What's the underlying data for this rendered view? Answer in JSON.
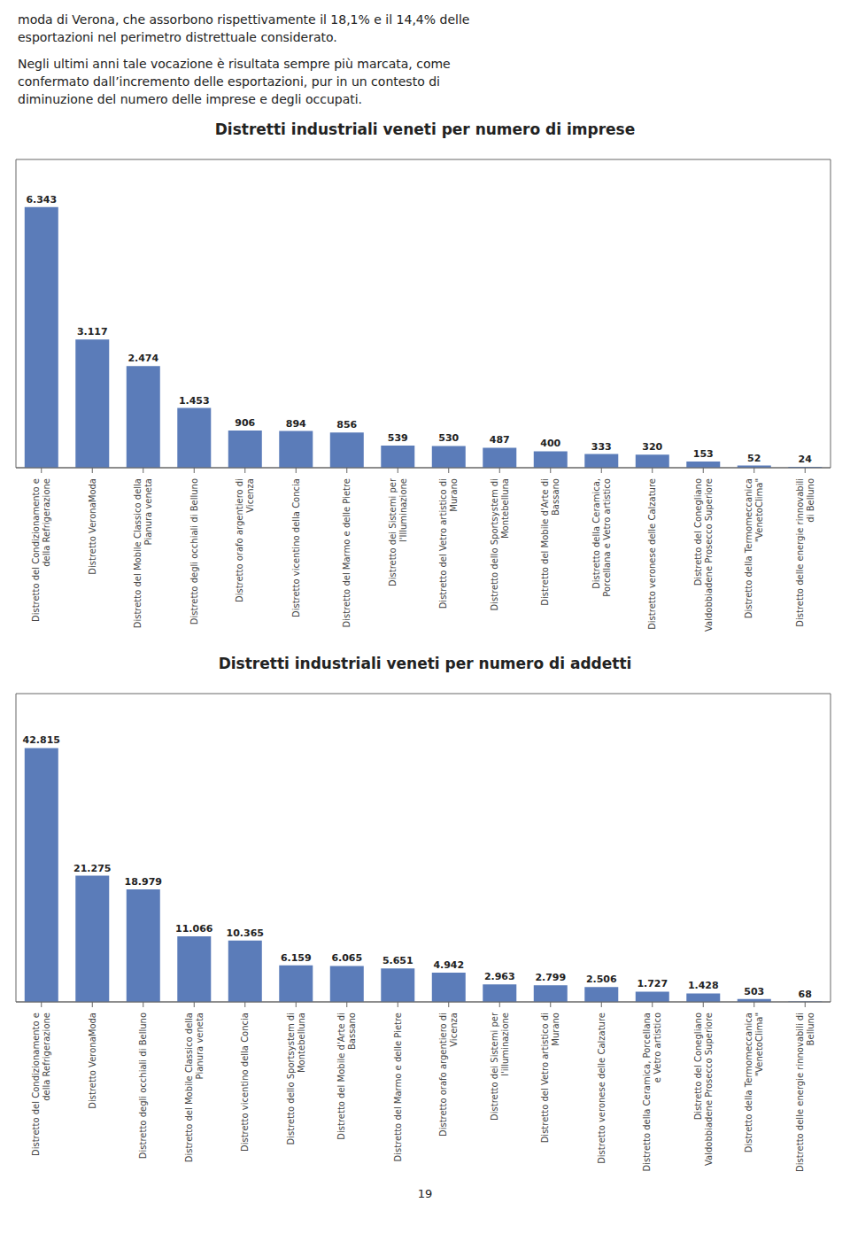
{
  "chart_data": [
    {
      "type": "bar",
      "title": "Distretti industriali veneti per numero di imprese",
      "annotations": [
        "moda di Verona, che assorbono rispettivamente il 18,1% e il 14,4% delle",
        "esportazioni nel perimetro distrettuale considerato.",
        "Negli ultimi anni tale vocazione è risultata sempre più marcata, come",
        "confermato dall’incremento delle esportazioni, pur in un contesto di",
        "diminuzione del numero delle imprese e degli occupati."
      ],
      "categories": [
        "Distretto del Condizionamento e\ndella Refrigerazione",
        "Distretto VeronaModa",
        "Distretto del Mobile Classico della\nPianura veneta",
        "Distretto degli occhiali di Belluno",
        "Distretto orafo argentiero di\nVicenza",
        "Distretto vicentino della Concia",
        "Distretto del Marmo e delle Pietre",
        "Distretto dei Sistemi per\nl'Illuminazione",
        "Distretto del Vetro artistico di\nMurano",
        "Distretto dello Sportsystem di\nMontebelluna",
        "Distretto del Mobile d'Arte di\nBassano",
        "Distretto della Ceramica,\nPorcellana e Vetro artistico",
        "Distretto veronese delle Calzature",
        "Distretto del Conegliano\nValdobbiadene Prosecco Superiore",
        "Distretto della Termomeccanica\n\"VenetoClima\"",
        "Distretto delle energie rinnovabili\ndi Belluno"
      ],
      "values": [
        6343,
        3117,
        2474,
        1453,
        906,
        894,
        856,
        539,
        530,
        487,
        400,
        333,
        320,
        153,
        52,
        24
      ],
      "value_labels": [
        "6.343",
        "3.117",
        "2.474",
        "1.453",
        "906",
        "894",
        "856",
        "539",
        "530",
        "487",
        "400",
        "333",
        "320",
        "153",
        "52",
        "24"
      ],
      "color": "#5B7CB9",
      "ylim": [
        0,
        7500
      ],
      "grid": false,
      "data_labels": true,
      "tick_labels": "x"
    },
    {
      "type": "bar",
      "title": "Distretti industriali veneti per numero di addetti",
      "annotations": [
        "19"
      ],
      "categories": [
        "Distretto del Condizionamento e\ndella Refrigerazione",
        "Distretto VeronaModa",
        "Distretto degli occhiali di Belluno",
        "Distretto del Mobile Classico della\nPianura veneta",
        "Distretto vicentino della Concia",
        "Distretto dello Sportsystem di\nMontebelluna",
        "Distretto del Mobile d'Arte di\nBassano",
        "Distretto del Marmo e delle Pietre",
        "Distretto orafo argentiero di\nVicenza",
        "Distretto dei Sistemi per\nl'illuminazione",
        "Distretto del Vetro artistico di\nMurano",
        "Distretto veronese delle Calzature",
        "Distretto della Ceramica, Porcellana\ne Vetro artistico",
        "Distretto del Conegliano\nValdobbiadene Prosecco Superiore",
        "Distretto della Termomeccanica\n\"VenetoClima\"",
        "Distretto delle energie rinnovabili di\nBelluno"
      ],
      "values": [
        42815,
        21275,
        18979,
        11066,
        10365,
        6159,
        6065,
        5651,
        4942,
        2963,
        2799,
        2506,
        1727,
        1428,
        503,
        68
      ],
      "value_labels": [
        "42.815",
        "21.275",
        "18.979",
        "11.066",
        "10.365",
        "6.159",
        "6.065",
        "5.651",
        "4.942",
        "2.963",
        "2.799",
        "2.506",
        "1.727",
        "1.428",
        "503",
        "68"
      ],
      "color": "#5B7CB9",
      "ylim": [
        0,
        52000
      ],
      "grid": false,
      "data_labels": true,
      "tick_labels": "x"
    }
  ]
}
